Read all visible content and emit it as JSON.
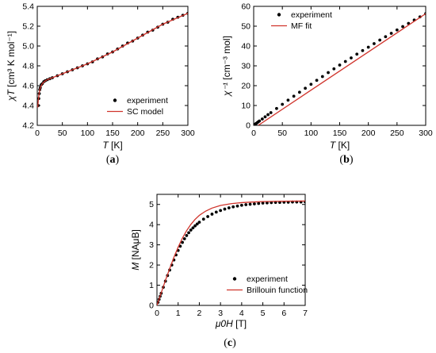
{
  "chart_data": [
    {
      "type": "scatter",
      "panel_label": "(a)",
      "xlabel_main": "T",
      "xlabel_unit": " [K]",
      "ylabel_main": "χT",
      "ylabel_unit": " [cm³ K mol⁻¹]",
      "xlim": [
        0,
        300
      ],
      "ylim": [
        4.2,
        5.4
      ],
      "xticks": [
        0,
        50,
        100,
        150,
        200,
        250,
        300
      ],
      "yticks": [
        4.2,
        4.4,
        4.6,
        4.8,
        5.0,
        5.2,
        5.4
      ],
      "xtick_labels": [
        "0",
        "50",
        "100",
        "150",
        "200",
        "250",
        "300"
      ],
      "ytick_labels": [
        "4.2",
        "4.4",
        "4.6",
        "4.8",
        "5.0",
        "5.2",
        "5.4"
      ],
      "legend": "bottom-right",
      "series": [
        {
          "name": "experiment",
          "style": "markers",
          "color": "#000000",
          "x": [
            2,
            3,
            4,
            5,
            6,
            8,
            10,
            13,
            16,
            20,
            25,
            30,
            40,
            50,
            60,
            70,
            80,
            90,
            100,
            110,
            120,
            130,
            140,
            150,
            160,
            170,
            180,
            190,
            200,
            210,
            220,
            230,
            240,
            250,
            260,
            270,
            280,
            290,
            300
          ],
          "y": [
            4.4,
            4.47,
            4.52,
            4.56,
            4.58,
            4.61,
            4.62,
            4.64,
            4.65,
            4.66,
            4.67,
            4.68,
            4.7,
            4.72,
            4.74,
            4.76,
            4.78,
            4.8,
            4.82,
            4.84,
            4.87,
            4.89,
            4.92,
            4.94,
            4.97,
            5.0,
            5.03,
            5.05,
            5.08,
            5.11,
            5.14,
            5.16,
            5.19,
            5.22,
            5.24,
            5.27,
            5.29,
            5.31,
            5.33
          ]
        },
        {
          "name": "SC model",
          "style": "line",
          "color": "#d0342c",
          "x": [
            1,
            2,
            4,
            6,
            10,
            15,
            20,
            30,
            50,
            100,
            150,
            200,
            250,
            300
          ],
          "y": [
            4.38,
            4.45,
            4.53,
            4.58,
            4.62,
            4.645,
            4.66,
            4.68,
            4.72,
            4.82,
            4.94,
            5.08,
            5.22,
            5.33
          ]
        }
      ]
    },
    {
      "type": "scatter",
      "panel_label": "(b)",
      "xlabel_main": "T",
      "xlabel_unit": " [K]",
      "ylabel_main": "χ⁻¹",
      "ylabel_unit": " [cm⁻³ mol]",
      "xlim": [
        0,
        300
      ],
      "ylim": [
        0,
        60
      ],
      "xticks": [
        0,
        50,
        100,
        150,
        200,
        250,
        300
      ],
      "yticks": [
        0,
        10,
        20,
        30,
        40,
        50,
        60
      ],
      "xtick_labels": [
        "0",
        "50",
        "100",
        "150",
        "200",
        "250",
        "300"
      ],
      "ytick_labels": [
        "0",
        "10",
        "20",
        "30",
        "40",
        "50",
        "60"
      ],
      "legend": "top-left",
      "series": [
        {
          "name": "experiment",
          "style": "markers",
          "color": "#000000",
          "x": [
            2,
            4,
            6,
            8,
            10,
            15,
            20,
            25,
            30,
            40,
            50,
            60,
            70,
            80,
            90,
            100,
            110,
            120,
            130,
            140,
            150,
            160,
            170,
            180,
            190,
            200,
            210,
            220,
            230,
            240,
            250,
            260,
            270,
            280,
            290,
            300
          ],
          "y": [
            0.5,
            0.9,
            1.3,
            1.75,
            2.2,
            3.2,
            4.3,
            5.4,
            6.4,
            8.5,
            10.6,
            12.7,
            14.7,
            16.7,
            18.7,
            20.7,
            22.7,
            24.6,
            26.6,
            28.5,
            30.4,
            32.2,
            34.0,
            35.9,
            37.7,
            39.4,
            41.2,
            43.0,
            44.7,
            46.4,
            48.1,
            49.8,
            51.4,
            53.1,
            54.7,
            56.3
          ]
        },
        {
          "name": "MF fit",
          "style": "line",
          "color": "#d0342c",
          "x": [
            8,
            300
          ],
          "y": [
            0,
            56.3
          ]
        }
      ]
    },
    {
      "type": "scatter",
      "panel_label": "(c)",
      "xlabel_main": "μ0H",
      "xlabel_unit": " [T]",
      "ylabel_main": "M",
      "ylabel_unit": " [NAμB]",
      "xlim": [
        0,
        7
      ],
      "ylim": [
        0,
        5.5
      ],
      "xticks": [
        0,
        1,
        2,
        3,
        4,
        5,
        6,
        7
      ],
      "yticks": [
        0,
        1,
        2,
        3,
        4,
        5
      ],
      "xtick_labels": [
        "0",
        "1",
        "2",
        "3",
        "4",
        "5",
        "6",
        "7"
      ],
      "ytick_labels": [
        "0",
        "1",
        "2",
        "3",
        "4",
        "5"
      ],
      "legend": "bottom-right",
      "series": [
        {
          "name": "experiment",
          "style": "markers",
          "color": "#000000",
          "x": [
            0.05,
            0.1,
            0.15,
            0.2,
            0.3,
            0.4,
            0.5,
            0.6,
            0.7,
            0.8,
            0.9,
            1.0,
            1.1,
            1.2,
            1.3,
            1.4,
            1.5,
            1.6,
            1.7,
            1.8,
            1.9,
            2.0,
            2.2,
            2.4,
            2.6,
            2.8,
            3.0,
            3.2,
            3.4,
            3.6,
            3.8,
            4.0,
            4.2,
            4.4,
            4.6,
            4.8,
            5.0,
            5.2,
            5.4,
            5.6,
            5.8,
            6.0,
            6.2,
            6.4,
            6.6,
            6.8,
            7.0
          ],
          "y": [
            0.15,
            0.3,
            0.45,
            0.6,
            0.9,
            1.2,
            1.48,
            1.75,
            2.0,
            2.25,
            2.5,
            2.72,
            2.93,
            3.12,
            3.3,
            3.46,
            3.6,
            3.73,
            3.84,
            3.94,
            4.03,
            4.12,
            4.27,
            4.4,
            4.52,
            4.62,
            4.7,
            4.77,
            4.83,
            4.88,
            4.92,
            4.96,
            4.99,
            5.01,
            5.03,
            5.05,
            5.07,
            5.08,
            5.09,
            5.1,
            5.1,
            5.11,
            5.11,
            5.12,
            5.12,
            5.12,
            5.13
          ]
        },
        {
          "name": "Brillouin function",
          "style": "line",
          "color": "#d0342c",
          "x": [
            0,
            0.2,
            0.4,
            0.6,
            0.8,
            1.0,
            1.2,
            1.4,
            1.6,
            1.8,
            2.0,
            2.3,
            2.6,
            3.0,
            3.5,
            4.0,
            4.5,
            5.0,
            6.0,
            7.0
          ],
          "y": [
            0,
            0.62,
            1.24,
            1.82,
            2.38,
            2.88,
            3.33,
            3.7,
            4.01,
            4.26,
            4.46,
            4.67,
            4.82,
            4.95,
            5.04,
            5.09,
            5.12,
            5.14,
            5.16,
            5.17
          ]
        }
      ]
    }
  ]
}
